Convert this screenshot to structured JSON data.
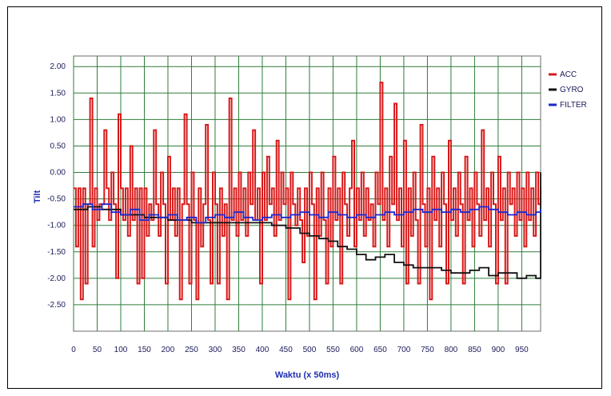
{
  "chart_data": {
    "type": "line",
    "title": "",
    "xlabel": "Waktu (x 50ms)",
    "ylabel": "Tilt",
    "xlim": [
      0,
      990
    ],
    "ylim": [
      -3,
      2.2
    ],
    "grid": true,
    "legend": "right",
    "x_ticks": [
      "0",
      "50",
      "100",
      "150",
      "200",
      "250",
      "300",
      "350",
      "400",
      "450",
      "500",
      "550",
      "600",
      "650",
      "700",
      "750",
      "800",
      "850",
      "900",
      "950"
    ],
    "y_ticks": [
      "2.00",
      "1.50",
      "1.00",
      "0.50",
      "0.00",
      "-0.50",
      "-1.00",
      "-1.50",
      "-2.00",
      "-2.50"
    ],
    "series": [
      {
        "name": "ACC",
        "color": "#d81818",
        "points": [
          [
            0,
            -0.3
          ],
          [
            5,
            -1.4
          ],
          [
            10,
            -0.3
          ],
          [
            15,
            -2.4
          ],
          [
            20,
            -0.3
          ],
          [
            25,
            -2.1
          ],
          [
            30,
            -0.6
          ],
          [
            35,
            1.4
          ],
          [
            40,
            -1.4
          ],
          [
            45,
            -0.3
          ],
          [
            50,
            -0.9
          ],
          [
            55,
            -0.6
          ],
          [
            60,
            -0.6
          ],
          [
            65,
            0.8
          ],
          [
            70,
            -0.3
          ],
          [
            75,
            -0.9
          ],
          [
            80,
            0.0
          ],
          [
            85,
            -0.6
          ],
          [
            90,
            -2.0
          ],
          [
            95,
            1.1
          ],
          [
            100,
            -0.3
          ],
          [
            105,
            -0.9
          ],
          [
            110,
            -0.3
          ],
          [
            115,
            -1.2
          ],
          [
            120,
            0.5
          ],
          [
            125,
            -0.9
          ],
          [
            130,
            -0.3
          ],
          [
            135,
            -2.1
          ],
          [
            140,
            -0.3
          ],
          [
            145,
            -2.0
          ],
          [
            150,
            -0.3
          ],
          [
            155,
            -1.2
          ],
          [
            160,
            -0.6
          ],
          [
            165,
            -0.9
          ],
          [
            170,
            0.8
          ],
          [
            175,
            -0.6
          ],
          [
            180,
            -1.2
          ],
          [
            185,
            0.0
          ],
          [
            190,
            -0.6
          ],
          [
            195,
            -2.1
          ],
          [
            200,
            0.3
          ],
          [
            205,
            -0.9
          ],
          [
            210,
            -0.3
          ],
          [
            215,
            -1.2
          ],
          [
            220,
            -0.3
          ],
          [
            225,
            -2.4
          ],
          [
            230,
            -0.6
          ],
          [
            235,
            1.1
          ],
          [
            240,
            -0.6
          ],
          [
            245,
            -2.1
          ],
          [
            250,
            0.0
          ],
          [
            255,
            -0.9
          ],
          [
            260,
            -2.4
          ],
          [
            265,
            -0.3
          ],
          [
            270,
            -1.4
          ],
          [
            275,
            -0.6
          ],
          [
            280,
            0.9
          ],
          [
            285,
            -0.9
          ],
          [
            290,
            -2.1
          ],
          [
            295,
            0.0
          ],
          [
            300,
            -0.6
          ],
          [
            305,
            -2.1
          ],
          [
            310,
            -0.3
          ],
          [
            315,
            -1.2
          ],
          [
            320,
            -0.6
          ],
          [
            325,
            -2.4
          ],
          [
            330,
            1.4
          ],
          [
            335,
            -0.9
          ],
          [
            340,
            -0.3
          ],
          [
            345,
            -1.2
          ],
          [
            350,
            0.0
          ],
          [
            355,
            -0.9
          ],
          [
            360,
            -0.3
          ],
          [
            365,
            -1.2
          ],
          [
            370,
            0.0
          ],
          [
            375,
            -0.6
          ],
          [
            380,
            0.8
          ],
          [
            385,
            -0.9
          ],
          [
            390,
            -0.3
          ],
          [
            395,
            -2.1
          ],
          [
            400,
            0.0
          ],
          [
            405,
            -0.9
          ],
          [
            410,
            0.3
          ],
          [
            415,
            -0.6
          ],
          [
            420,
            -0.3
          ],
          [
            425,
            -1.2
          ],
          [
            430,
            0.6
          ],
          [
            435,
            -0.9
          ],
          [
            440,
            0.0
          ],
          [
            445,
            -0.6
          ],
          [
            450,
            -0.3
          ],
          [
            455,
            -2.4
          ],
          [
            460,
            0.0
          ],
          [
            465,
            -0.6
          ],
          [
            470,
            -1.0
          ],
          [
            475,
            -0.3
          ],
          [
            480,
            -0.9
          ],
          [
            485,
            -1.7
          ],
          [
            490,
            -0.3
          ],
          [
            495,
            -1.2
          ],
          [
            500,
            0.0
          ],
          [
            505,
            -0.6
          ],
          [
            510,
            -2.4
          ],
          [
            515,
            -0.3
          ],
          [
            520,
            -1.2
          ],
          [
            525,
            0.0
          ],
          [
            530,
            -0.9
          ],
          [
            535,
            -2.1
          ],
          [
            540,
            -0.3
          ],
          [
            545,
            -1.4
          ],
          [
            550,
            0.3
          ],
          [
            555,
            -0.9
          ],
          [
            560,
            -0.3
          ],
          [
            565,
            -2.1
          ],
          [
            570,
            0.0
          ],
          [
            575,
            -0.6
          ],
          [
            580,
            -1.2
          ],
          [
            585,
            -0.3
          ],
          [
            590,
            0.6
          ],
          [
            595,
            -1.4
          ],
          [
            600,
            -0.3
          ],
          [
            605,
            -0.9
          ],
          [
            610,
            0.0
          ],
          [
            615,
            -1.2
          ],
          [
            620,
            -0.3
          ],
          [
            625,
            -0.9
          ],
          [
            630,
            -0.6
          ],
          [
            635,
            -1.4
          ],
          [
            640,
            0.0
          ],
          [
            645,
            -0.6
          ],
          [
            650,
            1.7
          ],
          [
            655,
            -0.9
          ],
          [
            660,
            -0.3
          ],
          [
            665,
            -1.4
          ],
          [
            670,
            0.3
          ],
          [
            675,
            -0.6
          ],
          [
            680,
            1.3
          ],
          [
            685,
            -0.9
          ],
          [
            690,
            -0.3
          ],
          [
            695,
            -1.4
          ],
          [
            700,
            0.6
          ],
          [
            705,
            -2.1
          ],
          [
            710,
            -0.3
          ],
          [
            715,
            -1.2
          ],
          [
            720,
            0.0
          ],
          [
            725,
            -0.9
          ],
          [
            730,
            -2.1
          ],
          [
            735,
            0.9
          ],
          [
            740,
            -0.6
          ],
          [
            745,
            -1.4
          ],
          [
            750,
            -0.3
          ],
          [
            755,
            -2.4
          ],
          [
            760,
            0.3
          ],
          [
            765,
            -0.9
          ],
          [
            770,
            -0.3
          ],
          [
            775,
            -1.4
          ],
          [
            780,
            0.0
          ],
          [
            785,
            -0.6
          ],
          [
            790,
            -2.1
          ],
          [
            795,
            0.6
          ],
          [
            800,
            -0.9
          ],
          [
            805,
            -0.3
          ],
          [
            810,
            -1.2
          ],
          [
            815,
            0.0
          ],
          [
            820,
            -0.6
          ],
          [
            825,
            -2.1
          ],
          [
            830,
            0.3
          ],
          [
            835,
            -0.9
          ],
          [
            840,
            -0.3
          ],
          [
            845,
            -1.4
          ],
          [
            850,
            0.0
          ],
          [
            855,
            -0.6
          ],
          [
            860,
            -1.2
          ],
          [
            865,
            0.8
          ],
          [
            870,
            -0.9
          ],
          [
            875,
            -0.3
          ],
          [
            880,
            -1.4
          ],
          [
            885,
            0.0
          ],
          [
            890,
            -0.6
          ],
          [
            895,
            -2.1
          ],
          [
            900,
            0.3
          ],
          [
            905,
            -0.9
          ],
          [
            910,
            -0.3
          ],
          [
            915,
            -2.1
          ],
          [
            920,
            0.0
          ],
          [
            925,
            -0.6
          ],
          [
            930,
            -0.3
          ],
          [
            935,
            -1.2
          ],
          [
            940,
            0.0
          ],
          [
            945,
            -0.9
          ],
          [
            950,
            -0.3
          ],
          [
            955,
            -1.4
          ],
          [
            960,
            0.0
          ],
          [
            965,
            -0.9
          ],
          [
            970,
            -0.3
          ],
          [
            975,
            -1.2
          ],
          [
            980,
            0.0
          ],
          [
            985,
            -0.6
          ],
          [
            990,
            -0.3
          ]
        ]
      },
      {
        "name": "GYRO",
        "color": "#111111",
        "points": [
          [
            0,
            -0.7
          ],
          [
            30,
            -0.65
          ],
          [
            60,
            -0.7
          ],
          [
            100,
            -0.8
          ],
          [
            150,
            -0.85
          ],
          [
            200,
            -0.9
          ],
          [
            250,
            -0.95
          ],
          [
            300,
            -0.95
          ],
          [
            350,
            -0.95
          ],
          [
            400,
            -0.95
          ],
          [
            420,
            -1.0
          ],
          [
            450,
            -1.05
          ],
          [
            480,
            -1.15
          ],
          [
            500,
            -1.2
          ],
          [
            520,
            -1.25
          ],
          [
            540,
            -1.3
          ],
          [
            560,
            -1.4
          ],
          [
            580,
            -1.45
          ],
          [
            600,
            -1.55
          ],
          [
            620,
            -1.65
          ],
          [
            640,
            -1.6
          ],
          [
            660,
            -1.55
          ],
          [
            680,
            -1.7
          ],
          [
            700,
            -1.75
          ],
          [
            720,
            -1.8
          ],
          [
            740,
            -1.8
          ],
          [
            760,
            -1.8
          ],
          [
            780,
            -1.85
          ],
          [
            800,
            -1.9
          ],
          [
            820,
            -1.9
          ],
          [
            840,
            -1.85
          ],
          [
            860,
            -1.8
          ],
          [
            880,
            -1.95
          ],
          [
            900,
            -1.9
          ],
          [
            920,
            -1.9
          ],
          [
            940,
            -2.0
          ],
          [
            960,
            -1.95
          ],
          [
            980,
            -2.0
          ],
          [
            990,
            0.0
          ]
        ]
      },
      {
        "name": "FILTER",
        "color": "#1a28d0",
        "points": [
          [
            0,
            -0.65
          ],
          [
            20,
            -0.6
          ],
          [
            40,
            -0.7
          ],
          [
            60,
            -0.6
          ],
          [
            80,
            -0.75
          ],
          [
            100,
            -0.8
          ],
          [
            120,
            -0.7
          ],
          [
            140,
            -0.9
          ],
          [
            160,
            -0.8
          ],
          [
            180,
            -0.85
          ],
          [
            200,
            -0.8
          ],
          [
            220,
            -0.9
          ],
          [
            240,
            -0.85
          ],
          [
            260,
            -0.95
          ],
          [
            280,
            -0.85
          ],
          [
            300,
            -0.8
          ],
          [
            320,
            -0.85
          ],
          [
            340,
            -0.75
          ],
          [
            360,
            -0.85
          ],
          [
            380,
            -0.9
          ],
          [
            400,
            -0.85
          ],
          [
            420,
            -0.8
          ],
          [
            440,
            -0.85
          ],
          [
            460,
            -0.8
          ],
          [
            480,
            -0.75
          ],
          [
            500,
            -0.8
          ],
          [
            520,
            -0.85
          ],
          [
            540,
            -0.75
          ],
          [
            560,
            -0.8
          ],
          [
            580,
            -0.85
          ],
          [
            600,
            -0.8
          ],
          [
            620,
            -0.85
          ],
          [
            640,
            -0.8
          ],
          [
            660,
            -0.75
          ],
          [
            680,
            -0.8
          ],
          [
            700,
            -0.75
          ],
          [
            720,
            -0.7
          ],
          [
            740,
            -0.75
          ],
          [
            760,
            -0.7
          ],
          [
            780,
            -0.75
          ],
          [
            800,
            -0.7
          ],
          [
            820,
            -0.75
          ],
          [
            840,
            -0.7
          ],
          [
            860,
            -0.65
          ],
          [
            880,
            -0.7
          ],
          [
            900,
            -0.75
          ],
          [
            920,
            -0.8
          ],
          [
            940,
            -0.75
          ],
          [
            960,
            -0.8
          ],
          [
            980,
            -0.75
          ],
          [
            990,
            -0.7
          ]
        ]
      }
    ]
  }
}
